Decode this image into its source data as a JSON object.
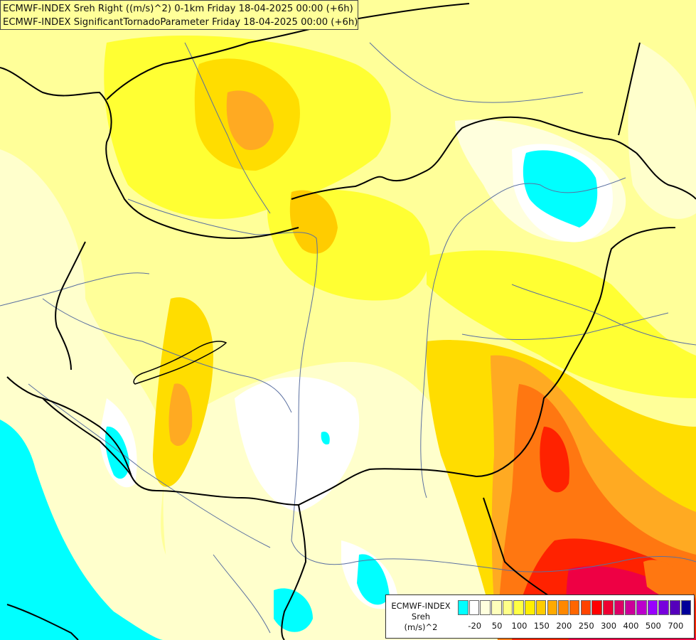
{
  "titles": {
    "line1": "ECMWF-INDEX Sreh Right ((m/s)^2) 0-1km Friday 18-04-2025 00:00 (+6h)",
    "line2": "ECMWF-INDEX SignificantTornadoParameter Friday 18-04-2025 00:00 (+6h)"
  },
  "legend": {
    "line1": "ECMWF-INDEX",
    "line2": "Sreh",
    "line3": "(m/s)^2",
    "swatches": [
      "#00ffff",
      "#ffffff",
      "#ffffdd",
      "#ffffbb",
      "#ffff88",
      "#ffff44",
      "#ffee00",
      "#ffcc00",
      "#ffaa00",
      "#ff8800",
      "#ff6600",
      "#ff4400",
      "#ff0000",
      "#ee0033",
      "#dd0066",
      "#cc0099",
      "#bb00cc",
      "#9900ff",
      "#7700dd",
      "#5500bb",
      "#000099"
    ],
    "ticks": [
      "-20",
      "50",
      "100",
      "150",
      "200",
      "250",
      "300",
      "400",
      "500",
      "700"
    ]
  },
  "colors": {
    "cyan": "#00ffff",
    "white": "#ffffff",
    "pale": "#ffffcc",
    "lightyellow": "#ffff99",
    "yellow": "#ffff33",
    "gold": "#ffdd00",
    "orange": "#ffaa22",
    "darkorange": "#ff7711",
    "red": "#ff2200",
    "crimson": "#ee0044",
    "border": "#000000",
    "river": "#5a6fa0"
  }
}
